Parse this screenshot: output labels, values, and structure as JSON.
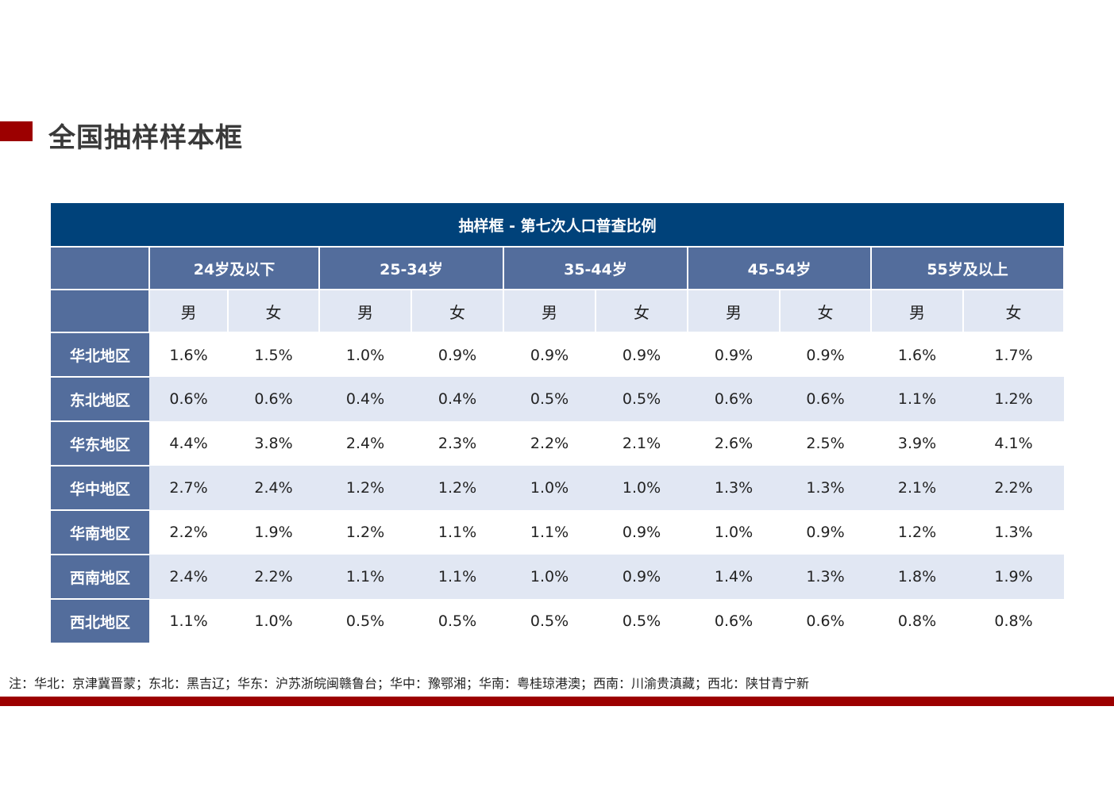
{
  "title": "全国抽样样本框",
  "table": {
    "caption": "抽样框 - 第七次人口普查比例",
    "age_groups": [
      "24岁及以下",
      "25-34岁",
      "35-44岁",
      "45-54岁",
      "55岁及以上"
    ],
    "sexes": [
      "男",
      "女"
    ],
    "rows": [
      {
        "region": "华北地区",
        "values": [
          "1.6%",
          "1.5%",
          "1.0%",
          "0.9%",
          "0.9%",
          "0.9%",
          "0.9%",
          "0.9%",
          "1.6%",
          "1.7%"
        ]
      },
      {
        "region": "东北地区",
        "values": [
          "0.6%",
          "0.6%",
          "0.4%",
          "0.4%",
          "0.5%",
          "0.5%",
          "0.6%",
          "0.6%",
          "1.1%",
          "1.2%"
        ]
      },
      {
        "region": "华东地区",
        "values": [
          "4.4%",
          "3.8%",
          "2.4%",
          "2.3%",
          "2.2%",
          "2.1%",
          "2.6%",
          "2.5%",
          "3.9%",
          "4.1%"
        ]
      },
      {
        "region": "华中地区",
        "values": [
          "2.7%",
          "2.4%",
          "1.2%",
          "1.2%",
          "1.0%",
          "1.0%",
          "1.3%",
          "1.3%",
          "2.1%",
          "2.2%"
        ]
      },
      {
        "region": "华南地区",
        "values": [
          "2.2%",
          "1.9%",
          "1.2%",
          "1.1%",
          "1.1%",
          "0.9%",
          "1.0%",
          "0.9%",
          "1.2%",
          "1.3%"
        ]
      },
      {
        "region": "西南地区",
        "values": [
          "2.4%",
          "2.2%",
          "1.1%",
          "1.1%",
          "1.0%",
          "0.9%",
          "1.4%",
          "1.3%",
          "1.8%",
          "1.9%"
        ]
      },
      {
        "region": "西北地区",
        "values": [
          "1.1%",
          "1.0%",
          "0.5%",
          "0.5%",
          "0.5%",
          "0.5%",
          "0.6%",
          "0.6%",
          "0.8%",
          "0.8%"
        ]
      }
    ]
  },
  "note": "注：华北：京津冀晋蒙；东北：黑吉辽；华东：沪苏浙皖闽赣鲁台；华中：豫鄂湘；华南：粤桂琼港澳；西南：川渝贵滇藏；西北：陕甘青宁新"
}
